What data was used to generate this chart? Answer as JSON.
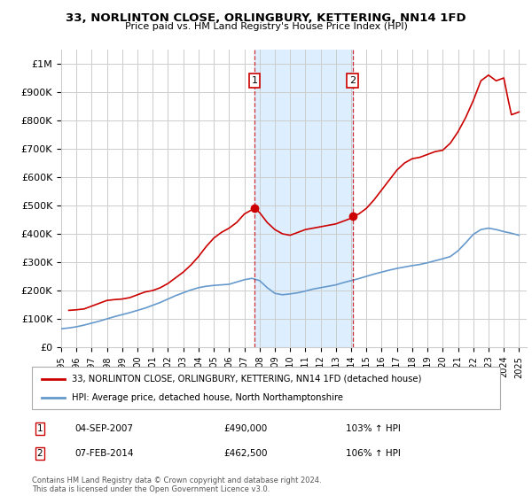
{
  "title": "33, NORLINTON CLOSE, ORLINGBURY, KETTERING, NN14 1FD",
  "subtitle": "Price paid vs. HM Land Registry's House Price Index (HPI)",
  "red_label": "33, NORLINTON CLOSE, ORLINGBURY, KETTERING, NN14 1FD (detached house)",
  "blue_label": "HPI: Average price, detached house, North Northamptonshire",
  "annotation1": {
    "num": "1",
    "date": "04-SEP-2007",
    "price": "£490,000",
    "hpi": "103% ↑ HPI",
    "year": 2007.67
  },
  "annotation2": {
    "num": "2",
    "date": "07-FEB-2014",
    "price": "£462,500",
    "hpi": "106% ↑ HPI",
    "year": 2014.1
  },
  "ylabel_ticks": [
    "£0",
    "£100K",
    "£200K",
    "£300K",
    "£400K",
    "£500K",
    "£600K",
    "£700K",
    "£800K",
    "£900K",
    "£1M"
  ],
  "ytick_vals": [
    0,
    100000,
    200000,
    300000,
    400000,
    500000,
    600000,
    700000,
    800000,
    900000,
    1000000
  ],
  "ylim": [
    0,
    1050000
  ],
  "xlim_start": 1995.0,
  "xlim_end": 2025.5,
  "background_color": "#ffffff",
  "plot_bg_color": "#ffffff",
  "grid_color": "#cccccc",
  "red_color": "#cc0000",
  "blue_color": "#6699cc",
  "shaded_region_color": "#ddeeff",
  "footer_text": "Contains HM Land Registry data © Crown copyright and database right 2024.\nThis data is licensed under the Open Government Licence v3.0.",
  "xtick_years": [
    1995,
    1996,
    1997,
    1998,
    1999,
    2000,
    2001,
    2002,
    2003,
    2004,
    2005,
    2006,
    2007,
    2008,
    2009,
    2010,
    2011,
    2012,
    2013,
    2014,
    2015,
    2016,
    2017,
    2018,
    2019,
    2020,
    2021,
    2022,
    2023,
    2024,
    2025
  ],
  "red_x": [
    1995.5,
    1996.0,
    1996.5,
    1997.0,
    1997.5,
    1998.0,
    1998.5,
    1999.0,
    1999.5,
    2000.0,
    2000.5,
    2001.0,
    2001.5,
    2002.0,
    2002.5,
    2003.0,
    2003.5,
    2004.0,
    2004.5,
    2005.0,
    2005.5,
    2006.0,
    2006.5,
    2007.0,
    2007.5,
    2007.67,
    2008.0,
    2008.5,
    2009.0,
    2009.5,
    2010.0,
    2010.5,
    2011.0,
    2011.5,
    2012.0,
    2012.5,
    2013.0,
    2013.5,
    2014.0,
    2014.1,
    2014.5,
    2015.0,
    2015.5,
    2016.0,
    2016.5,
    2017.0,
    2017.5,
    2018.0,
    2018.5,
    2019.0,
    2019.5,
    2020.0,
    2020.5,
    2021.0,
    2021.5,
    2022.0,
    2022.5,
    2023.0,
    2023.5,
    2024.0,
    2024.3,
    2024.5,
    2025.0
  ],
  "red_y": [
    130000,
    132000,
    135000,
    145000,
    155000,
    165000,
    168000,
    170000,
    175000,
    185000,
    195000,
    200000,
    210000,
    225000,
    245000,
    265000,
    290000,
    320000,
    355000,
    385000,
    405000,
    420000,
    440000,
    470000,
    485000,
    490000,
    475000,
    440000,
    415000,
    400000,
    395000,
    405000,
    415000,
    420000,
    425000,
    430000,
    435000,
    445000,
    455000,
    462500,
    470000,
    490000,
    520000,
    555000,
    590000,
    625000,
    650000,
    665000,
    670000,
    680000,
    690000,
    695000,
    720000,
    760000,
    810000,
    870000,
    940000,
    960000,
    940000,
    950000,
    870000,
    820000,
    830000
  ],
  "blue_x": [
    1995.0,
    1995.5,
    1996.0,
    1996.5,
    1997.0,
    1997.5,
    1998.0,
    1998.5,
    1999.0,
    1999.5,
    2000.0,
    2000.5,
    2001.0,
    2001.5,
    2002.0,
    2002.5,
    2003.0,
    2003.5,
    2004.0,
    2004.5,
    2005.0,
    2005.5,
    2006.0,
    2006.5,
    2007.0,
    2007.5,
    2008.0,
    2008.5,
    2009.0,
    2009.5,
    2010.0,
    2010.5,
    2011.0,
    2011.5,
    2012.0,
    2012.5,
    2013.0,
    2013.5,
    2014.0,
    2014.5,
    2015.0,
    2015.5,
    2016.0,
    2016.5,
    2017.0,
    2017.5,
    2018.0,
    2018.5,
    2019.0,
    2019.5,
    2020.0,
    2020.5,
    2021.0,
    2021.5,
    2022.0,
    2022.5,
    2023.0,
    2023.5,
    2024.0,
    2024.5,
    2025.0
  ],
  "blue_y": [
    65000,
    68000,
    72000,
    78000,
    85000,
    92000,
    100000,
    108000,
    115000,
    122000,
    130000,
    138000,
    148000,
    158000,
    170000,
    182000,
    192000,
    202000,
    210000,
    215000,
    218000,
    220000,
    222000,
    230000,
    238000,
    243000,
    235000,
    210000,
    190000,
    185000,
    188000,
    192000,
    198000,
    205000,
    210000,
    215000,
    220000,
    228000,
    235000,
    242000,
    250000,
    258000,
    265000,
    272000,
    278000,
    283000,
    288000,
    292000,
    298000,
    305000,
    312000,
    320000,
    340000,
    368000,
    398000,
    415000,
    420000,
    415000,
    408000,
    402000,
    395000
  ]
}
